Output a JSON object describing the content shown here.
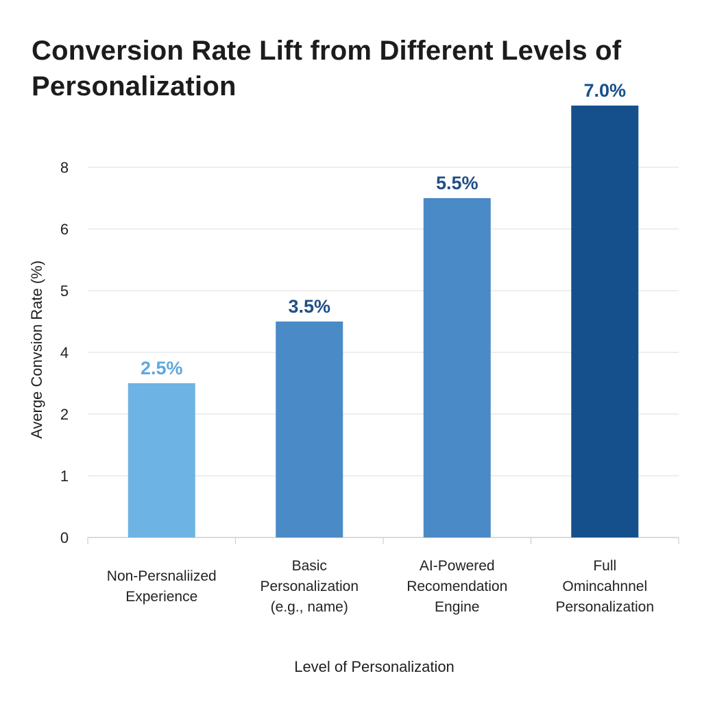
{
  "chart_data": {
    "type": "bar",
    "title": "Conversion Rate Lift from Different Levels of Personalization",
    "xlabel": "Level of Personalization",
    "ylabel": "Averge Convsion Rate (%)",
    "y_ticks": [
      "0",
      "1",
      "2",
      "4",
      "5",
      "6",
      "8"
    ],
    "categories": [
      [
        "Non-Persnaliized",
        "Experience"
      ],
      [
        "Basic",
        "Personalization",
        "(e.g., name)"
      ],
      [
        "AI-Powered",
        "Recomendation",
        "Engine"
      ],
      [
        "Full",
        "Omincahnnel",
        "Personalization"
      ]
    ],
    "values": [
      2.5,
      3.5,
      5.5,
      7.0
    ],
    "data_labels": [
      "2.5%",
      "3.5%",
      "5.5%",
      "7.0%"
    ],
    "bar_colors": [
      "#6db3e3",
      "#4a8ac6",
      "#4a8ac6",
      "#15508c"
    ],
    "label_colors": [
      "#5ea9e0",
      "#1f4f86",
      "#1f4f86",
      "#15508c"
    ],
    "gridlines": true,
    "legend": "none"
  }
}
